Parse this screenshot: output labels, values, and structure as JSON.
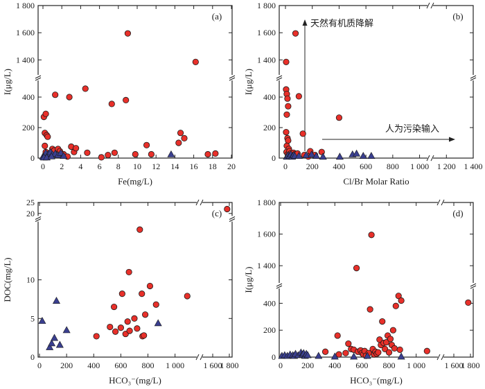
{
  "colors": {
    "red": "#e8302a",
    "blue": "#3a3f8f",
    "outline": "#1a1a1a"
  },
  "chart_data": [
    {
      "id": "a",
      "type": "scatter",
      "tag": "(a)",
      "xlabel": "Fe(mg/L)",
      "ylabel": "I(μg/L)",
      "xlim": [
        0,
        20
      ],
      "xticks": [
        "0",
        "2",
        "4",
        "6",
        "8",
        "10",
        "12",
        "14",
        "16",
        "18",
        "20"
      ],
      "y_break": {
        "lower": [
          0,
          500
        ],
        "upper": [
          1300,
          1800
        ]
      },
      "yticks_lower": [
        "0",
        "200",
        "400"
      ],
      "yticks_upper": [
        "1 400",
        "1 600",
        "1 800"
      ],
      "series": [
        {
          "marker": "circle",
          "color": "red",
          "points": [
            [
              0.1,
              270
            ],
            [
              0.3,
              290
            ],
            [
              0.2,
              165
            ],
            [
              0.4,
              150
            ],
            [
              0.5,
              140
            ],
            [
              0.2,
              80
            ],
            [
              0.3,
              40
            ],
            [
              0.5,
              20
            ],
            [
              0.6,
              10
            ],
            [
              0.7,
              30
            ],
            [
              1.0,
              60
            ],
            [
              1.2,
              50
            ],
            [
              1.3,
              415
            ],
            [
              1.6,
              60
            ],
            [
              1.8,
              45
            ],
            [
              1.9,
              20
            ],
            [
              2.2,
              25
            ],
            [
              2.6,
              10
            ],
            [
              2.8,
              400
            ],
            [
              3.0,
              75
            ],
            [
              3.3,
              40
            ],
            [
              3.5,
              65
            ],
            [
              4.5,
              455
            ],
            [
              4.7,
              35
            ],
            [
              6.2,
              5
            ],
            [
              6.9,
              20
            ],
            [
              7.3,
              355
            ],
            [
              7.6,
              35
            ],
            [
              8.8,
              380
            ],
            [
              9.0,
              1595
            ],
            [
              9.8,
              25
            ],
            [
              11.0,
              85
            ],
            [
              11.5,
              25
            ],
            [
              14.4,
              100
            ],
            [
              14.6,
              165
            ],
            [
              15.0,
              130
            ],
            [
              16.2,
              1385
            ],
            [
              17.5,
              25
            ],
            [
              18.3,
              30
            ]
          ]
        },
        {
          "marker": "triangle",
          "color": "blue",
          "points": [
            [
              0.0,
              10
            ],
            [
              0.2,
              20
            ],
            [
              0.3,
              35
            ],
            [
              0.5,
              15
            ],
            [
              0.6,
              30
            ],
            [
              0.8,
              40
            ],
            [
              1.0,
              25
            ],
            [
              1.3,
              30
            ],
            [
              1.6,
              20
            ],
            [
              1.9,
              35
            ],
            [
              2.2,
              15
            ],
            [
              0.1,
              5
            ],
            [
              0.4,
              5
            ],
            [
              0.9,
              12
            ],
            [
              13.6,
              25
            ]
          ]
        }
      ]
    },
    {
      "id": "b",
      "type": "scatter",
      "tag": "(b)",
      "xlabel": "Cl/Br Molar Ratio",
      "ylabel": "I(μg/L)",
      "xlim": [
        0,
        1400
      ],
      "xticks": [
        "0",
        "200",
        "400",
        "600",
        "800",
        "1 000",
        "1 200",
        "1 400"
      ],
      "y_break": {
        "lower": [
          0,
          500
        ],
        "upper": [
          1300,
          1800
        ]
      },
      "yticks_lower": [
        "0",
        "200",
        "400"
      ],
      "yticks_upper": [
        "1 400",
        "1 600",
        "1 800"
      ],
      "annotations": [
        "天然有机质降解",
        "人为污染输入"
      ],
      "series": [
        {
          "marker": "circle",
          "color": "red",
          "points": [
            [
              5,
              1385
            ],
            [
              5,
              450
            ],
            [
              10,
              420
            ],
            [
              15,
              390
            ],
            [
              20,
              340
            ],
            [
              10,
              285
            ],
            [
              5,
              170
            ],
            [
              15,
              130
            ],
            [
              20,
              115
            ],
            [
              10,
              80
            ],
            [
              25,
              60
            ],
            [
              8,
              40
            ],
            [
              18,
              25
            ],
            [
              30,
              45
            ],
            [
              40,
              30
            ],
            [
              50,
              20
            ],
            [
              60,
              35
            ],
            [
              70,
              25
            ],
            [
              75,
              1595
            ],
            [
              90,
              30
            ],
            [
              100,
              405
            ],
            [
              130,
              160
            ],
            [
              140,
              20
            ],
            [
              170,
              10
            ],
            [
              185,
              45
            ],
            [
              220,
              20
            ],
            [
              270,
              40
            ],
            [
              400,
              265
            ]
          ]
        },
        {
          "marker": "triangle",
          "color": "blue",
          "points": [
            [
              10,
              10
            ],
            [
              20,
              20
            ],
            [
              30,
              15
            ],
            [
              40,
              25
            ],
            [
              50,
              10
            ],
            [
              60,
              20
            ],
            [
              70,
              15
            ],
            [
              100,
              15
            ],
            [
              155,
              20
            ],
            [
              195,
              25
            ],
            [
              230,
              15
            ],
            [
              280,
              10
            ],
            [
              405,
              10
            ],
            [
              500,
              25
            ],
            [
              530,
              30
            ],
            [
              580,
              15
            ],
            [
              640,
              15
            ]
          ]
        }
      ]
    },
    {
      "id": "c",
      "type": "scatter",
      "tag": "(c)",
      "xlabel": "HCO₃⁻(mg/L)",
      "ylabel": "DOC(mg/L)",
      "x_break": {
        "left": [
          0,
          1150
        ],
        "right": [
          1500,
          1800
        ]
      },
      "xticks_left": [
        "0",
        "200",
        "400",
        "600",
        "800",
        "1 000"
      ],
      "xticks_right": [
        "1 600",
        "1 800"
      ],
      "y_break": {
        "lower": [
          0,
          17.5
        ],
        "upper": [
          19,
          25
        ]
      },
      "yticks_lower": [
        "0",
        "5",
        "10"
      ],
      "yticks_upper": [
        "20",
        "25"
      ],
      "series": [
        {
          "marker": "circle",
          "color": "red",
          "points": [
            [
              420,
              2.7
            ],
            [
              520,
              3.9
            ],
            [
              550,
              6.5
            ],
            [
              560,
              3.3
            ],
            [
              600,
              3.8
            ],
            [
              610,
              8.2
            ],
            [
              635,
              3.0
            ],
            [
              650,
              4.6
            ],
            [
              660,
              11.0
            ],
            [
              665,
              3.4
            ],
            [
              700,
              5.0
            ],
            [
              720,
              3.7
            ],
            [
              740,
              16.5
            ],
            [
              755,
              8.2
            ],
            [
              760,
              2.7
            ],
            [
              770,
              2.8
            ],
            [
              780,
              5.5
            ],
            [
              815,
              9.2
            ],
            [
              860,
              6.8
            ],
            [
              1090,
              7.9
            ],
            [
              1760,
              22
            ]
          ]
        },
        {
          "marker": "triangle",
          "color": "blue",
          "points": [
            [
              20,
              4.7
            ],
            [
              75,
              1.3
            ],
            [
              90,
              1.8
            ],
            [
              110,
              2.5
            ],
            [
              125,
              7.3
            ],
            [
              150,
              1.6
            ],
            [
              200,
              3.5
            ],
            [
              875,
              4.4
            ]
          ]
        }
      ]
    },
    {
      "id": "d",
      "type": "scatter",
      "tag": "(d)",
      "xlabel": "HCO₃⁻(mg/L)",
      "ylabel": "I(μg/L)",
      "x_break": {
        "left": [
          0,
          1150
        ],
        "right": [
          1500,
          1800
        ]
      },
      "xticks_left": [
        "0",
        "200",
        "400",
        "600",
        "800",
        "1 000"
      ],
      "xticks_right": [
        "1 600",
        "1 800"
      ],
      "y_break": {
        "lower": [
          0,
          500
        ],
        "upper": [
          1300,
          1800
        ]
      },
      "yticks_lower": [
        "0",
        "200",
        "400"
      ],
      "yticks_upper": [
        "1 400",
        "1 600",
        "1 800"
      ],
      "series": [
        {
          "marker": "circle",
          "color": "red",
          "points": [
            [
              330,
              40
            ],
            [
              420,
              160
            ],
            [
              430,
              20
            ],
            [
              480,
              30
            ],
            [
              500,
              100
            ],
            [
              520,
              60
            ],
            [
              540,
              55
            ],
            [
              560,
              1385
            ],
            [
              570,
              40
            ],
            [
              590,
              50
            ],
            [
              600,
              30
            ],
            [
              610,
              20
            ],
            [
              620,
              45
            ],
            [
              630,
              10
            ],
            [
              650,
              30
            ],
            [
              660,
              355
            ],
            [
              670,
              1595
            ],
            [
              680,
              60
            ],
            [
              690,
              20
            ],
            [
              700,
              40
            ],
            [
              710,
              25
            ],
            [
              720,
              35
            ],
            [
              730,
              130
            ],
            [
              740,
              90
            ],
            [
              750,
              265
            ],
            [
              760,
              105
            ],
            [
              770,
              60
            ],
            [
              780,
              110
            ],
            [
              790,
              160
            ],
            [
              800,
              35
            ],
            [
              810,
              135
            ],
            [
              820,
              90
            ],
            [
              830,
              200
            ],
            [
              840,
              65
            ],
            [
              850,
              380
            ],
            [
              870,
              455
            ],
            [
              880,
              55
            ],
            [
              890,
              420
            ],
            [
              1080,
              45
            ],
            [
              1760,
              405
            ]
          ]
        },
        {
          "marker": "triangle",
          "color": "blue",
          "points": [
            [
              10,
              10
            ],
            [
              30,
              15
            ],
            [
              50,
              10
            ],
            [
              70,
              20
            ],
            [
              90,
              15
            ],
            [
              100,
              10
            ],
            [
              110,
              25
            ],
            [
              130,
              15
            ],
            [
              150,
              35
            ],
            [
              160,
              20
            ],
            [
              170,
              30
            ],
            [
              180,
              10
            ],
            [
              190,
              25
            ],
            [
              200,
              15
            ],
            [
              280,
              10
            ],
            [
              400,
              5
            ],
            [
              540,
              5
            ],
            [
              640,
              10
            ],
            [
              890,
              5
            ]
          ]
        }
      ]
    }
  ]
}
